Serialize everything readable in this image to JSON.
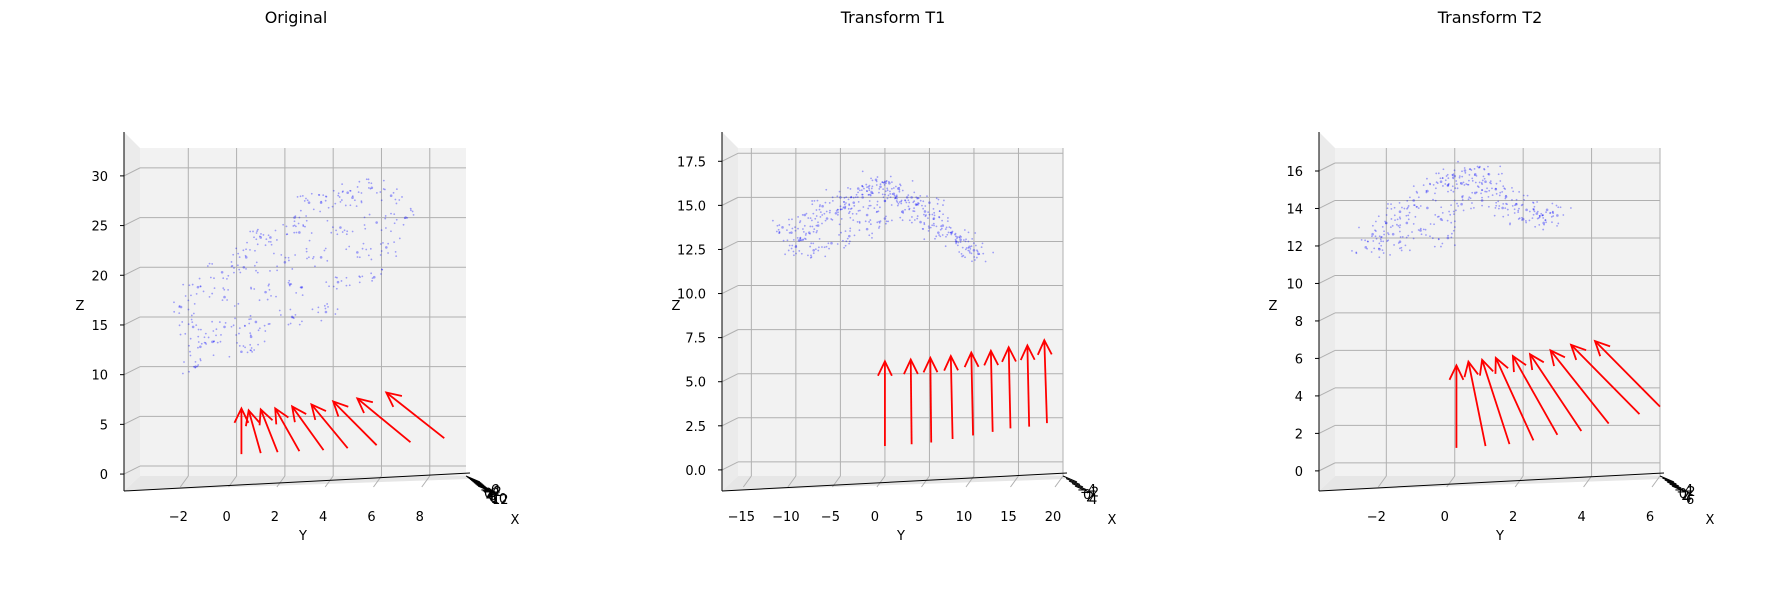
{
  "chart_data": [
    {
      "type": "scatter",
      "projection": "3d",
      "title": "Original",
      "xlabel": "X",
      "ylabel": "Y",
      "zlabel": "Z",
      "grid": true,
      "y_ticks": [
        -2,
        0,
        2,
        4,
        6,
        8
      ],
      "y_tick_labels": [
        "−2",
        "0",
        "2",
        "4",
        "6",
        "8"
      ],
      "z_ticks": [
        0,
        5,
        10,
        15,
        20,
        25,
        30
      ],
      "z_tick_labels": [
        "0",
        "5",
        "10",
        "15",
        "20",
        "25",
        "30"
      ],
      "x_tick_labels": [
        "−6",
        "−4",
        "−2",
        "0",
        "2",
        "4",
        "6",
        "8",
        "10",
        "12"
      ],
      "ylim": [
        -4.0,
        9.5
      ],
      "zlim": [
        -1.0,
        32.0
      ],
      "point_color": "#0000ff",
      "arrow_color": "#ff0000",
      "cloud_points": [
        [
          -1.7,
          10.0
        ],
        [
          -1.5,
          12.0
        ],
        [
          -1.8,
          14.0
        ],
        [
          -2.3,
          16.0
        ],
        [
          -1.6,
          18.0
        ],
        [
          -0.6,
          19.5
        ],
        [
          0.4,
          21.0
        ],
        [
          1.4,
          23.0
        ],
        [
          2.4,
          25.0
        ],
        [
          3.5,
          26.5
        ],
        [
          4.6,
          27.5
        ],
        [
          5.6,
          28.0
        ],
        [
          -0.5,
          14.0
        ],
        [
          0.8,
          14.5
        ],
        [
          2.3,
          15.0
        ],
        [
          3.7,
          15.5
        ],
        [
          -0.5,
          17.0
        ],
        [
          1.2,
          17.5
        ],
        [
          2.7,
          18.0
        ],
        [
          4.2,
          18.5
        ],
        [
          5.7,
          19.0
        ],
        [
          0.3,
          20.0
        ],
        [
          2.0,
          20.5
        ],
        [
          3.5,
          21.0
        ],
        [
          5.0,
          21.5
        ],
        [
          6.2,
          22.0
        ],
        [
          1.0,
          23.0
        ],
        [
          2.6,
          23.5
        ],
        [
          4.3,
          24.0
        ],
        [
          5.8,
          24.5
        ],
        [
          7.0,
          25.0
        ],
        [
          3.0,
          26.5
        ],
        [
          4.8,
          27.0
        ],
        [
          6.4,
          27.2
        ],
        [
          0.2,
          11.5
        ],
        [
          0.6,
          13.0
        ],
        [
          -1.0,
          12.5
        ]
      ],
      "arrows": [
        {
          "tail": [
            0.2,
            1.2
          ],
          "head": [
            0.2,
            5.8
          ]
        },
        {
          "tail": [
            1.0,
            1.3
          ],
          "head": [
            0.5,
            5.6
          ]
        },
        {
          "tail": [
            1.7,
            1.4
          ],
          "head": [
            1.0,
            5.7
          ]
        },
        {
          "tail": [
            2.6,
            1.5
          ],
          "head": [
            1.6,
            5.8
          ]
        },
        {
          "tail": [
            3.6,
            1.6
          ],
          "head": [
            2.3,
            6.0
          ]
        },
        {
          "tail": [
            4.6,
            1.8
          ],
          "head": [
            3.1,
            6.2
          ]
        },
        {
          "tail": [
            5.8,
            2.1
          ],
          "head": [
            4.0,
            6.5
          ]
        },
        {
          "tail": [
            7.2,
            2.4
          ],
          "head": [
            5.0,
            6.8
          ]
        },
        {
          "tail": [
            8.6,
            2.8
          ],
          "head": [
            6.2,
            7.4
          ]
        }
      ]
    },
    {
      "type": "scatter",
      "projection": "3d",
      "title": "Transform T1",
      "xlabel": "X",
      "ylabel": "Y",
      "zlabel": "Z",
      "grid": true,
      "y_ticks": [
        -15,
        -10,
        -5,
        0,
        5,
        10,
        15,
        20
      ],
      "y_tick_labels": [
        "−15",
        "−10",
        "−5",
        "0",
        "5",
        "10",
        "15",
        "20"
      ],
      "z_ticks": [
        0.0,
        2.5,
        5.0,
        7.5,
        10.0,
        12.5,
        15.0,
        17.5
      ],
      "z_tick_labels": [
        "0.0",
        "2.5",
        "5.0",
        "7.5",
        "10.0",
        "12.5",
        "15.0",
        "17.5"
      ],
      "x_tick_labels": [
        "−4",
        "−2",
        "0",
        "2",
        "4"
      ],
      "ylim": [
        -16.5,
        20.0
      ],
      "zlim": [
        -0.8,
        17.8
      ],
      "point_color": "#0000ff",
      "arrow_color": "#ff0000",
      "cloud_points": [
        [
          -11.5,
          13.3
        ],
        [
          -10.5,
          13.0
        ],
        [
          -9.5,
          12.6
        ],
        [
          -8.5,
          13.0
        ],
        [
          -7.5,
          13.4
        ],
        [
          -6.5,
          13.8
        ],
        [
          -5.5,
          14.1
        ],
        [
          -4.5,
          14.4
        ],
        [
          -3.5,
          14.7
        ],
        [
          -2.5,
          15.0
        ],
        [
          -1.5,
          15.3
        ],
        [
          -0.5,
          15.6
        ],
        [
          0.5,
          15.8
        ],
        [
          1.5,
          15.5
        ],
        [
          2.5,
          15.0
        ],
        [
          3.5,
          14.6
        ],
        [
          4.5,
          14.2
        ],
        [
          5.5,
          13.8
        ],
        [
          6.5,
          13.4
        ],
        [
          7.5,
          13.0
        ],
        [
          8.5,
          12.6
        ],
        [
          9.5,
          12.2
        ],
        [
          10.5,
          11.8
        ],
        [
          -9.0,
          14.0
        ],
        [
          -7.0,
          14.5
        ],
        [
          -5.0,
          15.0
        ],
        [
          -3.0,
          15.5
        ],
        [
          -1.0,
          16.0
        ],
        [
          -10.0,
          12.2
        ],
        [
          -8.0,
          12.0
        ],
        [
          -6.0,
          12.4
        ],
        [
          -4.0,
          12.8
        ],
        [
          -2.0,
          13.2
        ],
        [
          0.0,
          13.8
        ],
        [
          2.0,
          14.2
        ],
        [
          4.0,
          13.6
        ],
        [
          6.0,
          13.0
        ],
        [
          8.0,
          12.5
        ],
        [
          10.0,
          12.0
        ],
        [
          -2.0,
          14.0
        ],
        [
          0.0,
          14.8
        ],
        [
          1.0,
          15.2
        ],
        [
          3.0,
          15.0
        ],
        [
          5.0,
          14.7
        ]
      ],
      "arrows": [
        {
          "tail": [
            0.0,
            0.9
          ],
          "head": [
            0.0,
            5.7
          ]
        },
        {
          "tail": [
            3.0,
            1.0
          ],
          "head": [
            2.9,
            5.8
          ]
        },
        {
          "tail": [
            5.2,
            1.1
          ],
          "head": [
            5.1,
            5.9
          ]
        },
        {
          "tail": [
            7.6,
            1.3
          ],
          "head": [
            7.4,
            6.0
          ]
        },
        {
          "tail": [
            9.9,
            1.5
          ],
          "head": [
            9.7,
            6.2
          ]
        },
        {
          "tail": [
            12.1,
            1.7
          ],
          "head": [
            11.9,
            6.3
          ]
        },
        {
          "tail": [
            14.1,
            1.9
          ],
          "head": [
            13.9,
            6.5
          ]
        },
        {
          "tail": [
            16.2,
            2.0
          ],
          "head": [
            16.0,
            6.6
          ]
        },
        {
          "tail": [
            18.2,
            2.2
          ],
          "head": [
            17.9,
            6.9
          ]
        }
      ]
    },
    {
      "type": "scatter",
      "projection": "3d",
      "title": "Transform T2",
      "xlabel": "X",
      "ylabel": "Y",
      "zlabel": "Z",
      "grid": true,
      "y_ticks": [
        -2,
        0,
        2,
        4,
        6
      ],
      "y_tick_labels": [
        "−2",
        "0",
        "2",
        "4",
        "6"
      ],
      "z_ticks": [
        0,
        2,
        4,
        6,
        8,
        10,
        12,
        14,
        16
      ],
      "z_tick_labels": [
        "0",
        "2",
        "4",
        "6",
        "8",
        "10",
        "12",
        "14",
        "16"
      ],
      "x_tick_labels": [
        "−4",
        "−2",
        "0",
        "2",
        "4",
        "6"
      ],
      "ylim": [
        -3.5,
        6.0
      ],
      "zlim": [
        -0.7,
        16.8
      ],
      "point_color": "#0000ff",
      "arrow_color": "#ff0000",
      "cloud_points": [
        [
          -2.6,
          11.5
        ],
        [
          -2.4,
          12.2
        ],
        [
          -2.0,
          12.8
        ],
        [
          -1.6,
          13.4
        ],
        [
          -1.2,
          14.0
        ],
        [
          -0.8,
          14.5
        ],
        [
          -0.4,
          15.0
        ],
        [
          0.0,
          15.3
        ],
        [
          0.3,
          15.6
        ],
        [
          0.6,
          15.4
        ],
        [
          0.9,
          15.0
        ],
        [
          1.2,
          14.6
        ],
        [
          1.5,
          14.2
        ],
        [
          1.8,
          13.8
        ],
        [
          2.1,
          13.5
        ],
        [
          2.4,
          13.3
        ],
        [
          2.7,
          13.5
        ],
        [
          3.0,
          13.2
        ],
        [
          -2.2,
          11.4
        ],
        [
          -1.6,
          11.8
        ],
        [
          -1.0,
          12.4
        ],
        [
          -0.4,
          13.0
        ],
        [
          0.2,
          13.8
        ],
        [
          0.6,
          14.4
        ],
        [
          -0.2,
          14.8
        ],
        [
          0.8,
          14.0
        ],
        [
          1.4,
          13.6
        ],
        [
          2.0,
          13.0
        ],
        [
          2.6,
          12.8
        ],
        [
          -1.8,
          12.2
        ],
        [
          -1.4,
          12.8
        ],
        [
          -0.8,
          13.6
        ],
        [
          0.2,
          14.9
        ],
        [
          1.0,
          15.4
        ],
        [
          -0.2,
          12.0
        ]
      ],
      "arrows": [
        {
          "tail": [
            0.05,
            0.8
          ],
          "head": [
            0.05,
            5.2
          ]
        },
        {
          "tail": [
            0.9,
            0.9
          ],
          "head": [
            0.4,
            5.4
          ]
        },
        {
          "tail": [
            1.6,
            1.0
          ],
          "head": [
            0.8,
            5.5
          ]
        },
        {
          "tail": [
            2.3,
            1.2
          ],
          "head": [
            1.2,
            5.6
          ]
        },
        {
          "tail": [
            3.0,
            1.5
          ],
          "head": [
            1.7,
            5.7
          ]
        },
        {
          "tail": [
            3.7,
            1.7
          ],
          "head": [
            2.2,
            5.8
          ]
        },
        {
          "tail": [
            4.5,
            2.1
          ],
          "head": [
            2.8,
            6.0
          ]
        },
        {
          "tail": [
            5.4,
            2.6
          ],
          "head": [
            3.4,
            6.3
          ]
        },
        {
          "tail": [
            6.0,
            3.0
          ],
          "head": [
            4.1,
            6.5
          ]
        }
      ]
    }
  ]
}
